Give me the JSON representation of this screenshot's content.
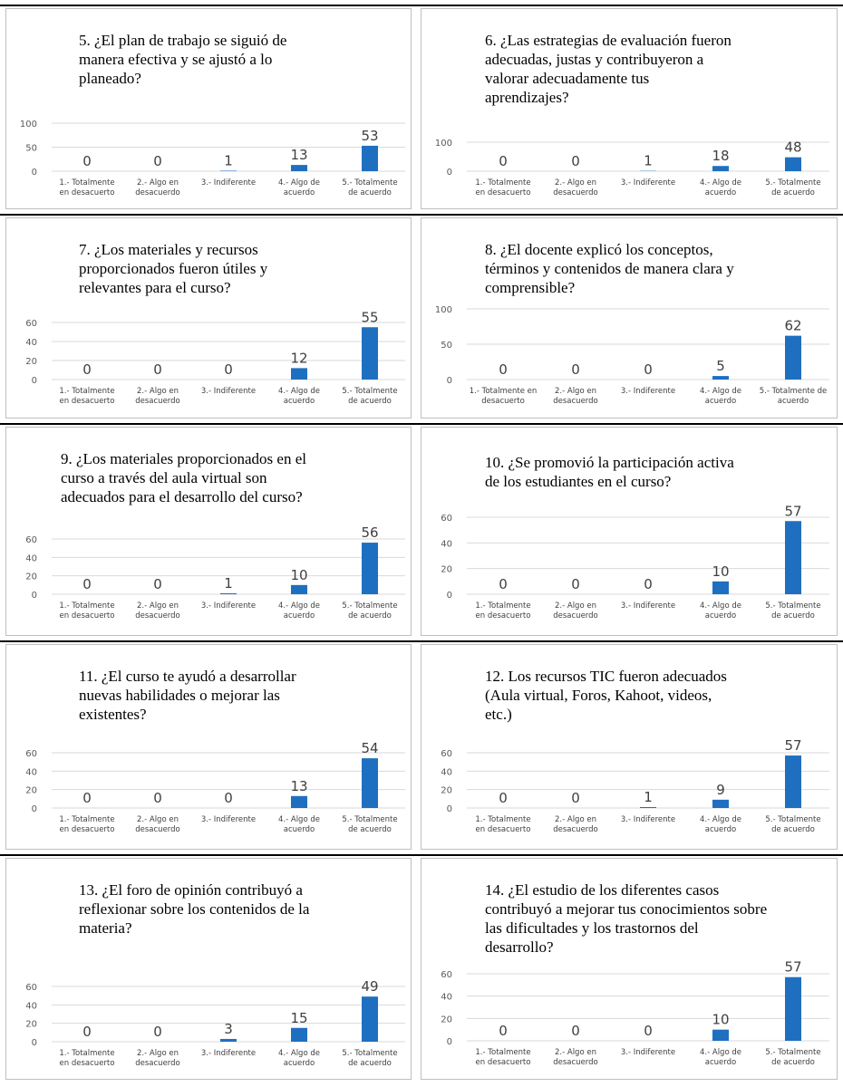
{
  "colors": {
    "bar": "#1f6fc0",
    "grid": "#d9d9d9",
    "border": "#bfbfbf"
  },
  "chart_data": [
    {
      "type": "bar",
      "title": "5. ¿El plan de trabajo se siguió de\nmanera efectiva y se ajustó a lo\nplaneado?",
      "categories": [
        "1.- Totalmente|en desacuerto",
        "2.- Algo en|desacuerdo",
        "3.- Indiferente",
        "4.- Algo de|acuerdo",
        "5.- Totalmente|de acuerdo"
      ],
      "values": [
        0,
        0,
        1,
        13,
        53
      ],
      "yticks": [
        0,
        50,
        100
      ],
      "ylim": [
        0,
        100
      ]
    },
    {
      "type": "bar",
      "title": "6. ¿Las estrategias de evaluación fueron\nadecuadas, justas y contribuyeron a\nvalorar adecuadamente tus\naprendizajes?",
      "categories": [
        "1.- Totalmente|en desacuerto",
        "2.- Algo en|desacuerdo",
        "3.- Indiferente",
        "4.- Algo de|acuerdo",
        "5.- Totalmente|de acuerdo"
      ],
      "values": [
        0,
        0,
        1,
        18,
        48
      ],
      "yticks": [
        0,
        100
      ],
      "ylim": [
        0,
        100
      ]
    },
    {
      "type": "bar",
      "title": "7. ¿Los materiales y recursos\nproporcionados fueron útiles y\nrelevantes para el curso?",
      "categories": [
        "1.- Totalmente|en desacuerto",
        "2.- Algo en|desacuerdo",
        "3.- Indiferente",
        "4.- Algo de|acuerdo",
        "5.- Totalmente|de acuerdo"
      ],
      "values": [
        0,
        0,
        0,
        12,
        55
      ],
      "yticks": [
        0,
        20,
        40,
        60
      ],
      "ylim": [
        0,
        60
      ]
    },
    {
      "type": "bar",
      "title": "8. ¿El docente explicó los conceptos,\ntérminos y contenidos de manera clara y\ncomprensible?",
      "categories": [
        "1.- Totalmente en|desacuerto",
        "2.- Algo en|desacuerdo",
        "3.- Indiferente",
        "4.- Algo de|acuerdo",
        "5.- Totalmente de|acuerdo"
      ],
      "values": [
        0,
        0,
        0,
        5,
        62
      ],
      "yticks": [
        0,
        50,
        100
      ],
      "ylim": [
        0,
        100
      ]
    },
    {
      "type": "bar",
      "title": "9. ¿Los materiales proporcionados en el\ncurso a través del aula virtual son\nadecuados para el desarrollo del curso?",
      "categories": [
        "1.- Totalmente|en desacuerto",
        "2.- Algo en|desacuerdo",
        "3.- Indiferente",
        "4.- Algo de|acuerdo",
        "5.- Totalmente|de acuerdo"
      ],
      "values": [
        0,
        0,
        1,
        10,
        56
      ],
      "yticks": [
        0,
        20,
        40,
        60
      ],
      "ylim": [
        0,
        60
      ]
    },
    {
      "type": "bar",
      "title": "10. ¿Se promovió la participación activa\nde los estudiantes en el curso?",
      "categories": [
        "1.- Totalmente|en desacuerto",
        "2.- Algo en|desacuerdo",
        "3.- Indiferente",
        "4.- Algo de|acuerdo",
        "5.- Totalmente|de acuerdo"
      ],
      "values": [
        0,
        0,
        0,
        10,
        57
      ],
      "yticks": [
        0,
        20,
        40,
        60
      ],
      "ylim": [
        0,
        60
      ]
    },
    {
      "type": "bar",
      "title": "11. ¿El curso te ayudó a desarrollar\nnuevas habilidades o mejorar las\nexistentes?",
      "categories": [
        "1.- Totalmente|en desacuerto",
        "2.- Algo en|desacuerdo",
        "3.- Indiferente",
        "4.- Algo de|acuerdo",
        "5.- Totalmente|de acuerdo"
      ],
      "values": [
        0,
        0,
        0,
        13,
        54
      ],
      "yticks": [
        0,
        20,
        40,
        60
      ],
      "ylim": [
        0,
        60
      ]
    },
    {
      "type": "bar",
      "title": "12. Los recursos TIC fueron adecuados\n(Aula virtual, Foros, Kahoot, videos,\netc.)",
      "categories": [
        "1.- Totalmente|en desacuerto",
        "2.- Algo en|desacuerdo",
        "3.- Indiferente",
        "4.- Algo de|acuerdo",
        "5.- Totalmente|de acuerdo"
      ],
      "values": [
        0,
        0,
        1,
        9,
        57
      ],
      "yticks": [
        0,
        20,
        40,
        60
      ],
      "ylim": [
        0,
        60
      ]
    },
    {
      "type": "bar",
      "title": "13. ¿El foro de opinión contribuyó a\nreflexionar sobre los contenidos de la\nmateria?",
      "categories": [
        "1.- Totalmente|en desacuerto",
        "2.- Algo en|desacuerdo",
        "3.- Indiferente",
        "4.- Algo de|acuerdo",
        "5.- Totalmente|de acuerdo"
      ],
      "values": [
        0,
        0,
        3,
        15,
        49
      ],
      "yticks": [
        0,
        20,
        40,
        60
      ],
      "ylim": [
        0,
        60
      ]
    },
    {
      "type": "bar",
      "title": "14. ¿El estudio de los diferentes casos\ncontribuyó a mejorar tus conocimientos sobre\nlas dificultades y los trastornos del\ndesarrollo?",
      "categories": [
        "1.- Totalmente|en desacuerto",
        "2.- Algo en|desacuerdo",
        "3.- Indiferente",
        "4.- Algo de|acuerdo",
        "5.- Totalmente|de acuerdo"
      ],
      "values": [
        0,
        0,
        0,
        10,
        57
      ],
      "yticks": [
        0,
        20,
        40,
        60
      ],
      "ylim": [
        0,
        60
      ]
    }
  ]
}
